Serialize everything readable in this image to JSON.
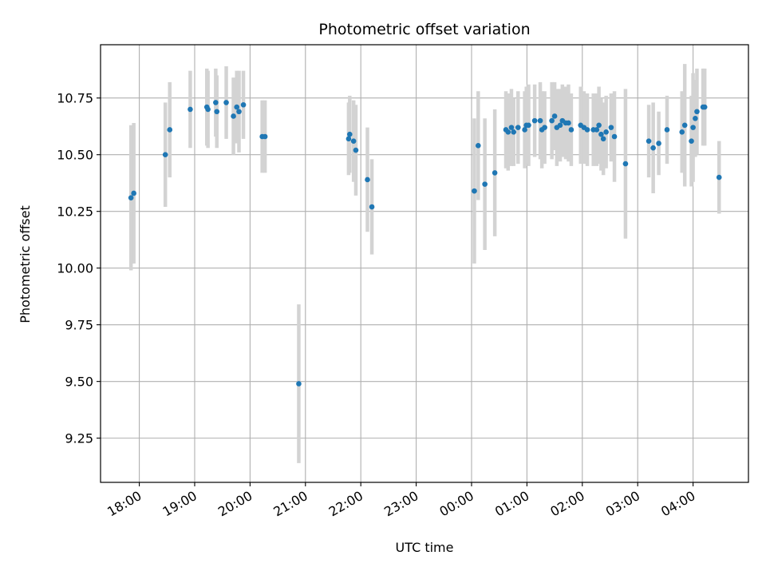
{
  "chart_data": {
    "type": "scatter",
    "title": "Photometric offset variation",
    "xlabel": "UTC time",
    "ylabel": "Photometric offset",
    "x_unit": "UTC time (hours; values after 24.0 are the following day)",
    "xlim": [
      17.3,
      29.0
    ],
    "ylim": [
      9.055,
      10.985
    ],
    "x_ticks": [
      18,
      19,
      20,
      21,
      22,
      23,
      24,
      25,
      26,
      27,
      28
    ],
    "x_tick_labels": [
      "18:00",
      "19:00",
      "20:00",
      "21:00",
      "22:00",
      "23:00",
      "00:00",
      "01:00",
      "02:00",
      "03:00",
      "04:00"
    ],
    "y_ticks": [
      9.25,
      9.5,
      9.75,
      10.0,
      10.25,
      10.5,
      10.75
    ],
    "y_tick_labels": [
      "9.25",
      "9.50",
      "9.75",
      "10.00",
      "10.25",
      "10.50",
      "10.75"
    ],
    "grid": true,
    "legend": "none",
    "marker_color": "#1f77b4",
    "errorbar_color": "#d3d3d3",
    "points": [
      [
        17.85,
        10.31,
        0.32
      ],
      [
        17.9,
        10.33,
        0.31
      ],
      [
        18.47,
        10.5,
        0.23
      ],
      [
        18.55,
        10.61,
        0.21
      ],
      [
        18.92,
        10.7,
        0.17
      ],
      [
        19.22,
        10.71,
        0.17
      ],
      [
        19.24,
        10.7,
        0.17
      ],
      [
        19.38,
        10.73,
        0.15
      ],
      [
        19.4,
        10.69,
        0.16
      ],
      [
        19.57,
        10.73,
        0.16
      ],
      [
        19.7,
        10.67,
        0.17
      ],
      [
        19.76,
        10.71,
        0.16
      ],
      [
        19.8,
        10.69,
        0.18
      ],
      [
        19.88,
        10.72,
        0.15
      ],
      [
        20.22,
        10.58,
        0.16
      ],
      [
        20.27,
        10.58,
        0.16
      ],
      [
        20.88,
        9.49,
        0.35
      ],
      [
        21.78,
        10.57,
        0.16
      ],
      [
        21.8,
        10.59,
        0.17
      ],
      [
        21.87,
        10.56,
        0.18
      ],
      [
        21.91,
        10.52,
        0.2
      ],
      [
        22.12,
        10.39,
        0.23
      ],
      [
        22.2,
        10.27,
        0.21
      ],
      [
        24.05,
        10.34,
        0.32
      ],
      [
        24.12,
        10.54,
        0.24
      ],
      [
        24.24,
        10.37,
        0.29
      ],
      [
        24.42,
        10.42,
        0.28
      ],
      [
        24.62,
        10.61,
        0.17
      ],
      [
        24.66,
        10.6,
        0.17
      ],
      [
        24.72,
        10.62,
        0.17
      ],
      [
        24.76,
        10.6,
        0.15
      ],
      [
        24.84,
        10.62,
        0.16
      ],
      [
        24.96,
        10.61,
        0.17
      ],
      [
        24.99,
        10.63,
        0.17
      ],
      [
        25.03,
        10.63,
        0.18
      ],
      [
        25.14,
        10.65,
        0.16
      ],
      [
        25.24,
        10.65,
        0.17
      ],
      [
        25.27,
        10.61,
        0.17
      ],
      [
        25.32,
        10.62,
        0.16
      ],
      [
        25.45,
        10.65,
        0.17
      ],
      [
        25.5,
        10.67,
        0.15
      ],
      [
        25.54,
        10.62,
        0.17
      ],
      [
        25.6,
        10.63,
        0.16
      ],
      [
        25.64,
        10.65,
        0.16
      ],
      [
        25.7,
        10.64,
        0.16
      ],
      [
        25.75,
        10.64,
        0.17
      ],
      [
        25.8,
        10.61,
        0.16
      ],
      [
        25.97,
        10.63,
        0.17
      ],
      [
        26.03,
        10.62,
        0.16
      ],
      [
        26.09,
        10.61,
        0.16
      ],
      [
        26.2,
        10.61,
        0.16
      ],
      [
        26.26,
        10.61,
        0.16
      ],
      [
        26.3,
        10.63,
        0.17
      ],
      [
        26.34,
        10.59,
        0.16
      ],
      [
        26.38,
        10.57,
        0.16
      ],
      [
        26.43,
        10.6,
        0.16
      ],
      [
        26.52,
        10.62,
        0.15
      ],
      [
        26.58,
        10.58,
        0.2
      ],
      [
        26.78,
        10.46,
        0.33
      ],
      [
        27.2,
        10.56,
        0.16
      ],
      [
        27.28,
        10.53,
        0.2
      ],
      [
        27.38,
        10.55,
        0.14
      ],
      [
        27.53,
        10.61,
        0.15
      ],
      [
        27.8,
        10.6,
        0.18
      ],
      [
        27.85,
        10.63,
        0.27
      ],
      [
        27.97,
        10.56,
        0.2
      ],
      [
        28.0,
        10.62,
        0.24
      ],
      [
        28.04,
        10.66,
        0.17
      ],
      [
        28.07,
        10.69,
        0.19
      ],
      [
        28.18,
        10.71,
        0.17
      ],
      [
        28.21,
        10.71,
        0.17
      ],
      [
        28.47,
        10.4,
        0.16
      ]
    ]
  }
}
